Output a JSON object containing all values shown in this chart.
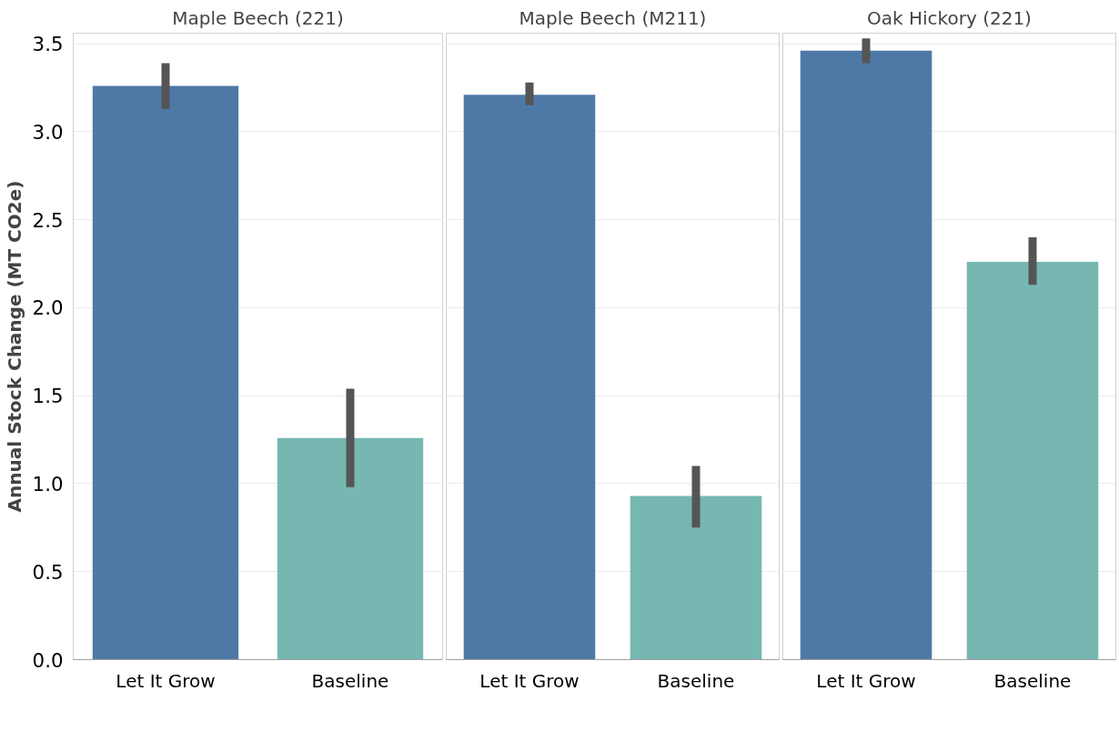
{
  "chart_data": [
    {
      "type": "bar",
      "title": "Maple Beech (221)",
      "ylabel": "Annual Stock Change (MT CO2e)",
      "categories": [
        "Let It Grow",
        "Baseline"
      ],
      "values": [
        3.26,
        1.26
      ],
      "colors": [
        "#4e79a7",
        "#76b7b2"
      ],
      "errors": [
        [
          3.13,
          3.39
        ],
        [
          0.98,
          1.54
        ]
      ],
      "ylim": [
        0,
        3.56
      ],
      "yticks": [
        {
          "value": 0,
          "label": "0.0"
        },
        0.5,
        {
          "value": 1,
          "label": "1.0"
        },
        1.5,
        {
          "value": 2,
          "label": "2.0"
        },
        2.5,
        {
          "value": 3,
          "label": "3.0"
        },
        3.5
      ],
      "grid": "y"
    },
    {
      "type": "bar",
      "title": "Maple Beech (M211)",
      "categories": [
        "Let It Grow",
        "Baseline"
      ],
      "values": [
        3.21,
        0.93
      ],
      "colors": [
        "#4e79a7",
        "#76b7b2"
      ],
      "errors": [
        [
          3.15,
          3.28
        ],
        [
          0.75,
          1.1
        ]
      ],
      "ylim": [
        0,
        3.56
      ],
      "yticks": [
        0,
        0.5,
        1,
        1.5,
        2,
        2.5,
        3,
        3.5
      ],
      "grid": "y",
      "tick_labels": "x"
    },
    {
      "type": "bar",
      "title": "Oak Hickory (221)",
      "categories": [
        "Let It Grow",
        "Baseline"
      ],
      "values": [
        3.46,
        2.26
      ],
      "colors": [
        "#4e79a7",
        "#76b7b2"
      ],
      "errors": [
        [
          3.39,
          3.53
        ],
        [
          2.13,
          2.4
        ]
      ],
      "ylim": [
        0,
        3.56
      ],
      "yticks": [
        0,
        0.5,
        1,
        1.5,
        2,
        2.5,
        3,
        3.5
      ],
      "grid": "y",
      "tick_labels": "x"
    }
  ]
}
